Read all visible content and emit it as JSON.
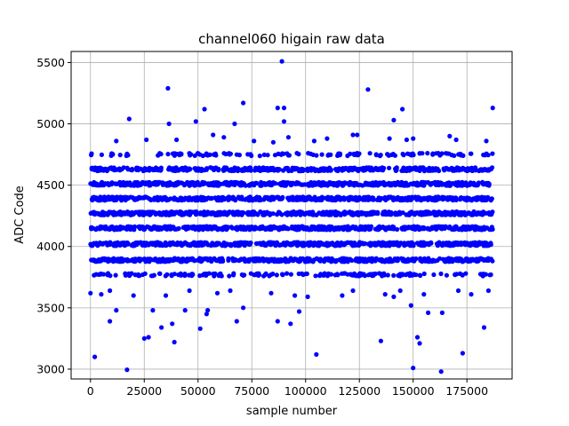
{
  "chart_data": {
    "type": "scatter",
    "title": "channel060 higain raw data",
    "xlabel": "sample number",
    "ylabel": "ADC Code",
    "xlim": [
      -9000,
      196000
    ],
    "ylim": [
      2920,
      5590
    ],
    "x_ticks": [
      0,
      25000,
      50000,
      75000,
      100000,
      125000,
      150000,
      175000
    ],
    "y_ticks": [
      3000,
      3500,
      4000,
      4500,
      5000,
      5500
    ],
    "grid": true,
    "marker_color": "#0000ff",
    "series": [
      {
        "name": "",
        "x_range": [
          0,
          187000
        ],
        "bands": [
          3770,
          3890,
          4020,
          4150,
          4270,
          4390,
          4510,
          4630,
          4750
        ],
        "band_density": [
          0.35,
          1,
          1,
          1,
          1,
          1,
          1,
          0.9,
          0.25
        ],
        "outliers": [
          [
            2000,
            3100
          ],
          [
            17000,
            2995
          ],
          [
            25000,
            3250
          ],
          [
            27000,
            3260
          ],
          [
            33000,
            3340
          ],
          [
            38000,
            3370
          ],
          [
            39000,
            3220
          ],
          [
            44000,
            3480
          ],
          [
            51000,
            3330
          ],
          [
            54000,
            3450
          ],
          [
            54500,
            3480
          ],
          [
            68000,
            3390
          ],
          [
            71000,
            3500
          ],
          [
            87000,
            3390
          ],
          [
            93000,
            3370
          ],
          [
            97000,
            3470
          ],
          [
            105000,
            3120
          ],
          [
            135000,
            3230
          ],
          [
            149000,
            3520
          ],
          [
            150000,
            3010
          ],
          [
            152000,
            3260
          ],
          [
            153000,
            3210
          ],
          [
            157000,
            3460
          ],
          [
            163000,
            2980
          ],
          [
            163500,
            3460
          ],
          [
            173000,
            3130
          ],
          [
            183000,
            3340
          ],
          [
            36000,
            5290
          ],
          [
            36500,
            5000
          ],
          [
            49000,
            5020
          ],
          [
            53000,
            5120
          ],
          [
            67000,
            5000
          ],
          [
            71000,
            5170
          ],
          [
            87000,
            5130
          ],
          [
            89000,
            5510
          ],
          [
            90000,
            5130
          ],
          [
            90000,
            5020
          ],
          [
            129000,
            5280
          ],
          [
            141000,
            5030
          ],
          [
            145000,
            5120
          ],
          [
            187000,
            5130
          ],
          [
            18000,
            5040
          ],
          [
            12000,
            4860
          ],
          [
            26000,
            4870
          ],
          [
            40000,
            4870
          ],
          [
            57000,
            4910
          ],
          [
            62000,
            4890
          ],
          [
            76000,
            4860
          ],
          [
            85000,
            4850
          ],
          [
            92000,
            4890
          ],
          [
            104000,
            4860
          ],
          [
            110000,
            4880
          ],
          [
            122000,
            4910
          ],
          [
            124000,
            4910
          ],
          [
            139000,
            4880
          ],
          [
            147000,
            4870
          ],
          [
            150000,
            4880
          ],
          [
            167000,
            4900
          ],
          [
            170000,
            4870
          ],
          [
            184000,
            4860
          ],
          [
            0,
            3620
          ],
          [
            5000,
            3610
          ],
          [
            9000,
            3640
          ],
          [
            12000,
            3480
          ],
          [
            20000,
            3600
          ],
          [
            29000,
            3480
          ],
          [
            35000,
            3600
          ],
          [
            46000,
            3640
          ],
          [
            59000,
            3620
          ],
          [
            65000,
            3640
          ],
          [
            84000,
            3620
          ],
          [
            95000,
            3600
          ],
          [
            101000,
            3590
          ],
          [
            117000,
            3600
          ],
          [
            122000,
            3640
          ],
          [
            137000,
            3610
          ],
          [
            141000,
            3590
          ],
          [
            144000,
            3640
          ],
          [
            155000,
            3610
          ],
          [
            171000,
            3640
          ],
          [
            177000,
            3610
          ],
          [
            185000,
            3640
          ],
          [
            9000,
            3390
          ]
        ]
      }
    ]
  }
}
